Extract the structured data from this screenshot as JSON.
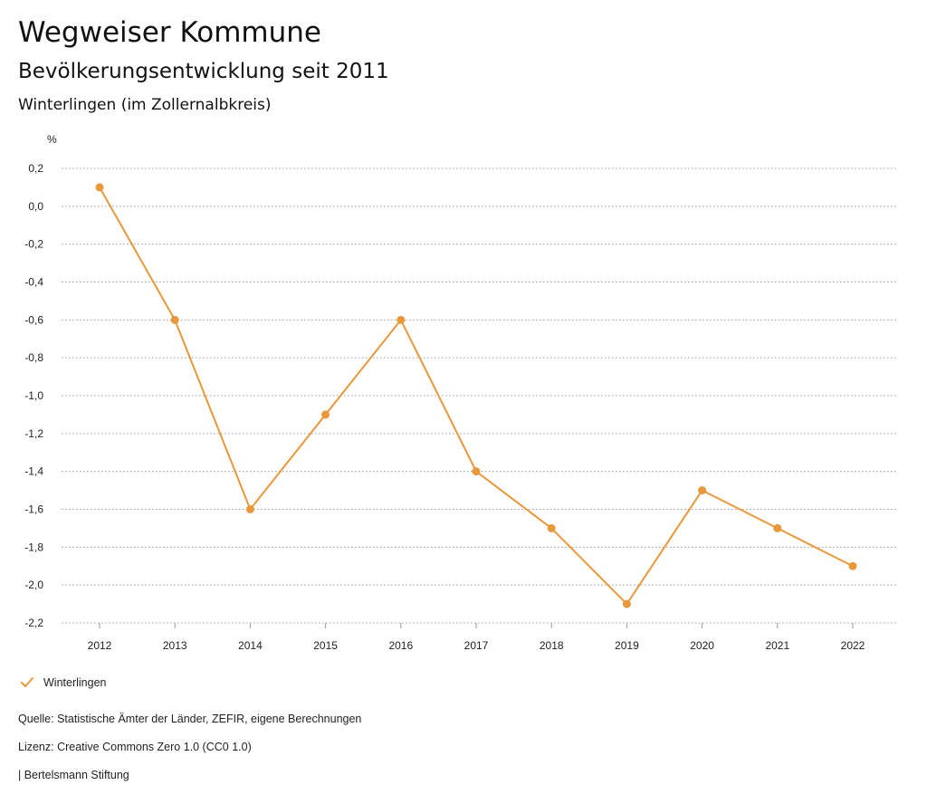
{
  "header": {
    "title": "Wegweiser Kommune",
    "subtitle": "Bevölkerungsentwicklung seit 2011",
    "region": "Winterlingen (im Zollernalbkreis)"
  },
  "colors": {
    "series": "#e8973a",
    "grid": "#999999",
    "text": "#222222"
  },
  "chart_data": {
    "type": "line",
    "title": "Bevölkerungsentwicklung seit 2011",
    "ylabel": "%",
    "xlabel": "",
    "ylim": [
      -2.2,
      0.2
    ],
    "yticks": [
      0.2,
      0.0,
      -0.2,
      -0.4,
      -0.6,
      -0.8,
      -1.0,
      -1.2,
      -1.4,
      -1.6,
      -1.8,
      -2.0,
      -2.2
    ],
    "ytick_labels": [
      "0,2",
      "0,0",
      "-0,2",
      "-0,4",
      "-0,6",
      "-0,8",
      "-1,0",
      "-1,2",
      "-1,4",
      "-1,6",
      "-1,8",
      "-2,0",
      "-2,2"
    ],
    "grid": true,
    "legend_position": "bottom-left",
    "categories": [
      "2012",
      "2013",
      "2014",
      "2015",
      "2016",
      "2017",
      "2018",
      "2019",
      "2020",
      "2021",
      "2022"
    ],
    "series": [
      {
        "name": "Winterlingen",
        "values": [
          0.1,
          -0.6,
          -1.6,
          -1.1,
          -0.6,
          -1.4,
          -1.7,
          -2.1,
          -1.5,
          -1.7,
          -1.9
        ]
      }
    ]
  },
  "legend": {
    "items": [
      {
        "label": "Winterlingen",
        "icon": "check-icon"
      }
    ]
  },
  "footer": {
    "source": "Quelle: Statistische Ämter der Länder, ZEFIR, eigene Berechnungen",
    "license": "Lizenz: Creative Commons Zero 1.0 (CC0 1.0)",
    "publisher": "| Bertelsmann Stiftung"
  }
}
